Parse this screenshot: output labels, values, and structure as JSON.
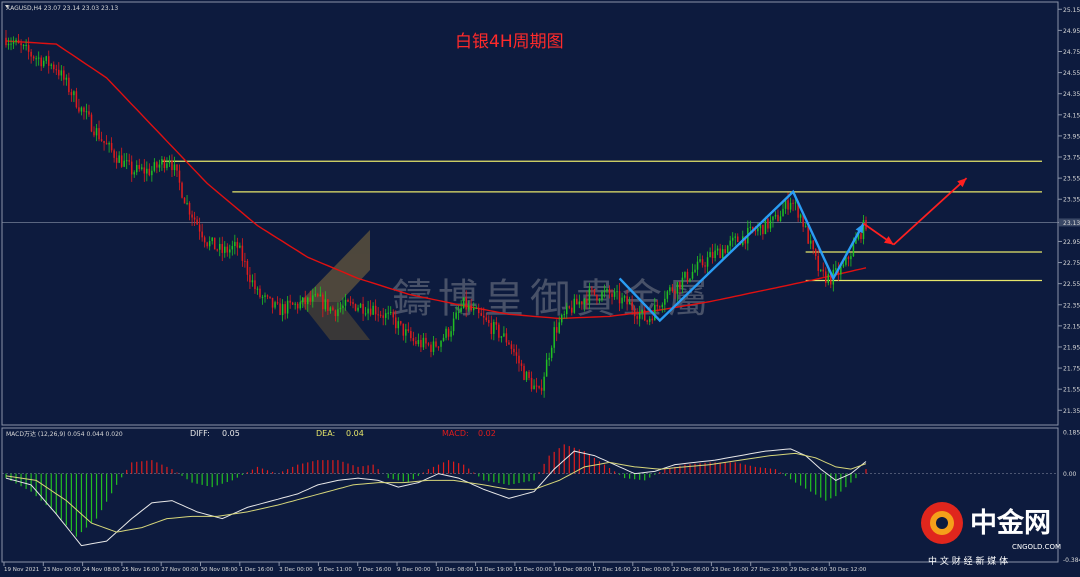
{
  "header": {
    "symbol_info": "XAGUSD,H4  23.07 23.14 23.03 23.13"
  },
  "title": "白银4H周期图",
  "watermark": {
    "text": "鑄博皇御貴金屬"
  },
  "logo": {
    "name": "中金网",
    "domain": "CNGOLD.COM",
    "tagline": "中 文 财 经 新 媒 体"
  },
  "colors": {
    "background": "#0d1b3e",
    "bull": "#22c022",
    "bear": "#e01c1c",
    "ma": "#e01010",
    "levels": "#e6e66a",
    "pattern": "#2a9df4",
    "forecast": "#ff2020",
    "diff": "#e8e8e8",
    "dea": "#d6d67a"
  },
  "chart_data": [
    {
      "type": "candlestick",
      "title": "白银4H周期图",
      "ylim": [
        21.22,
        25.2
      ],
      "y_ticks": [
        "25.15",
        "24.95",
        "24.75",
        "24.55",
        "24.35",
        "24.15",
        "23.95",
        "23.75",
        "23.55",
        "23.35",
        "23.13",
        "22.95",
        "22.75",
        "22.55",
        "22.35",
        "22.15",
        "21.95",
        "21.75",
        "21.55",
        "21.35"
      ],
      "current_price": "23.13",
      "x_labels": [
        "19 Nov 2021",
        "23 Nov 00:00",
        "24 Nov 08:00",
        "25 Nov 16:00",
        "27 Nov 00:00",
        "30 Nov 08:00",
        "1 Dec 16:00",
        "3 Dec 00:00",
        "6 Dec 11:00",
        "7 Dec 16:00",
        "9 Dec 00:00",
        "10 Dec 08:00",
        "13 Dec 19:00",
        "15 Dec 00:00",
        "16 Dec 08:00",
        "17 Dec 16:00",
        "21 Dec 00:00",
        "22 Dec 08:00",
        "23 Dec 16:00",
        "27 Dec 23:00",
        "29 Dec 04:00",
        "30 Dec 12:00"
      ],
      "price_path": [
        [
          0,
          24.88
        ],
        [
          10,
          24.72
        ],
        [
          20,
          24.6
        ],
        [
          30,
          24.2
        ],
        [
          40,
          23.85
        ],
        [
          50,
          23.62
        ],
        [
          58,
          23.62
        ],
        [
          65,
          23.75
        ],
        [
          72,
          23.3
        ],
        [
          80,
          22.95
        ],
        [
          86,
          22.85
        ],
        [
          92,
          22.9
        ],
        [
          100,
          22.45
        ],
        [
          108,
          22.3
        ],
        [
          116,
          22.35
        ],
        [
          124,
          22.4
        ],
        [
          130,
          22.3
        ],
        [
          138,
          22.35
        ],
        [
          146,
          22.32
        ],
        [
          154,
          22.2
        ],
        [
          162,
          22.0
        ],
        [
          170,
          21.95
        ],
        [
          176,
          22.1
        ],
        [
          182,
          22.35
        ],
        [
          190,
          22.2
        ],
        [
          200,
          22.0
        ],
        [
          206,
          21.7
        ],
        [
          212,
          21.5
        ],
        [
          218,
          22.1
        ],
        [
          224,
          22.3
        ],
        [
          232,
          22.45
        ],
        [
          240,
          22.45
        ],
        [
          248,
          22.35
        ],
        [
          255,
          22.2
        ],
        [
          262,
          22.45
        ],
        [
          270,
          22.6
        ],
        [
          280,
          22.8
        ],
        [
          290,
          22.95
        ],
        [
          298,
          23.05
        ],
        [
          306,
          23.15
        ],
        [
          312,
          23.35
        ],
        [
          316,
          23.2
        ],
        [
          320,
          22.9
        ],
        [
          324,
          22.62
        ],
        [
          328,
          22.6
        ],
        [
          333,
          22.7
        ],
        [
          338,
          22.95
        ],
        [
          342,
          23.13
        ]
      ],
      "ma_series": [
        [
          0,
          24.85
        ],
        [
          20,
          24.82
        ],
        [
          40,
          24.5
        ],
        [
          60,
          24.0
        ],
        [
          80,
          23.5
        ],
        [
          100,
          23.1
        ],
        [
          120,
          22.8
        ],
        [
          140,
          22.6
        ],
        [
          160,
          22.45
        ],
        [
          180,
          22.35
        ],
        [
          200,
          22.26
        ],
        [
          220,
          22.22
        ],
        [
          240,
          22.24
        ],
        [
          260,
          22.3
        ],
        [
          280,
          22.38
        ],
        [
          300,
          22.48
        ],
        [
          320,
          22.58
        ],
        [
          342,
          22.7
        ]
      ],
      "levels": [
        23.71,
        23.42,
        22.85,
        22.58
      ],
      "pattern_path": [
        [
          244,
          22.6
        ],
        [
          260,
          22.2
        ],
        [
          313,
          23.42
        ],
        [
          329,
          22.6
        ],
        [
          341,
          23.12
        ]
      ],
      "forecast_path": [
        [
          341,
          23.12
        ],
        [
          353,
          22.92
        ],
        [
          382,
          23.55
        ]
      ],
      "current_price_value": 23.13
    },
    {
      "type": "macd",
      "label": "MACD万达 (12,26,9) 0.054 0.044 0.020",
      "diff_label": "DIFF:",
      "diff_value": "0.05",
      "dea_label": "DEA:",
      "dea_value": "0.04",
      "macd_label": "MACD:",
      "macd_value": "0.02",
      "ylim": [
        -0.384,
        0.185
      ],
      "y_ticks": [
        "0.185",
        "0.00",
        "-0.384"
      ],
      "hist_seed": [
        [
          0,
          -0.02
        ],
        [
          10,
          -0.08
        ],
        [
          20,
          -0.18
        ],
        [
          28,
          -0.28
        ],
        [
          36,
          -0.2
        ],
        [
          44,
          -0.05
        ],
        [
          50,
          0.05
        ],
        [
          58,
          0.06
        ],
        [
          66,
          0.02
        ],
        [
          74,
          -0.04
        ],
        [
          82,
          -0.06
        ],
        [
          90,
          -0.03
        ],
        [
          100,
          0.03
        ],
        [
          108,
          0.0
        ],
        [
          116,
          0.04
        ],
        [
          124,
          0.06
        ],
        [
          132,
          0.06
        ],
        [
          140,
          0.03
        ],
        [
          146,
          0.04
        ],
        [
          152,
          -0.02
        ],
        [
          160,
          -0.04
        ],
        [
          168,
          0.02
        ],
        [
          176,
          0.06
        ],
        [
          182,
          0.04
        ],
        [
          190,
          -0.03
        ],
        [
          200,
          -0.05
        ],
        [
          210,
          -0.03
        ],
        [
          216,
          0.08
        ],
        [
          222,
          0.13
        ],
        [
          230,
          0.1
        ],
        [
          238,
          0.04
        ],
        [
          246,
          -0.02
        ],
        [
          254,
          -0.03
        ],
        [
          262,
          0.02
        ],
        [
          270,
          0.04
        ],
        [
          280,
          0.05
        ],
        [
          290,
          0.05
        ],
        [
          298,
          0.03
        ],
        [
          306,
          0.02
        ],
        [
          314,
          -0.04
        ],
        [
          320,
          -0.08
        ],
        [
          326,
          -0.12
        ],
        [
          330,
          -0.1
        ],
        [
          336,
          -0.04
        ],
        [
          342,
          0.02
        ]
      ],
      "diff_seed": [
        [
          0,
          -0.02
        ],
        [
          10,
          -0.05
        ],
        [
          20,
          -0.18
        ],
        [
          30,
          -0.32
        ],
        [
          40,
          -0.3
        ],
        [
          50,
          -0.2
        ],
        [
          58,
          -0.13
        ],
        [
          66,
          -0.12
        ],
        [
          76,
          -0.17
        ],
        [
          86,
          -0.2
        ],
        [
          96,
          -0.15
        ],
        [
          106,
          -0.12
        ],
        [
          116,
          -0.09
        ],
        [
          124,
          -0.05
        ],
        [
          132,
          -0.03
        ],
        [
          140,
          -0.02
        ],
        [
          148,
          -0.03
        ],
        [
          156,
          -0.06
        ],
        [
          164,
          -0.04
        ],
        [
          172,
          0.0
        ],
        [
          180,
          -0.02
        ],
        [
          190,
          -0.07
        ],
        [
          200,
          -0.11
        ],
        [
          210,
          -0.08
        ],
        [
          218,
          0.02
        ],
        [
          226,
          0.1
        ],
        [
          234,
          0.08
        ],
        [
          242,
          0.04
        ],
        [
          250,
          0.0
        ],
        [
          258,
          0.01
        ],
        [
          266,
          0.04
        ],
        [
          274,
          0.05
        ],
        [
          282,
          0.06
        ],
        [
          292,
          0.08
        ],
        [
          302,
          0.1
        ],
        [
          312,
          0.11
        ],
        [
          318,
          0.08
        ],
        [
          324,
          0.02
        ],
        [
          330,
          -0.03
        ],
        [
          336,
          0.0
        ],
        [
          342,
          0.054
        ]
      ],
      "dea_seed": [
        [
          0,
          -0.01
        ],
        [
          12,
          -0.03
        ],
        [
          24,
          -0.12
        ],
        [
          34,
          -0.22
        ],
        [
          44,
          -0.26
        ],
        [
          54,
          -0.24
        ],
        [
          64,
          -0.2
        ],
        [
          74,
          -0.19
        ],
        [
          84,
          -0.19
        ],
        [
          96,
          -0.17
        ],
        [
          108,
          -0.14
        ],
        [
          118,
          -0.11
        ],
        [
          128,
          -0.08
        ],
        [
          138,
          -0.05
        ],
        [
          148,
          -0.04
        ],
        [
          158,
          -0.04
        ],
        [
          168,
          -0.03
        ],
        [
          178,
          -0.03
        ],
        [
          190,
          -0.05
        ],
        [
          200,
          -0.07
        ],
        [
          210,
          -0.07
        ],
        [
          220,
          -0.03
        ],
        [
          230,
          0.03
        ],
        [
          240,
          0.05
        ],
        [
          250,
          0.03
        ],
        [
          260,
          0.02
        ],
        [
          270,
          0.03
        ],
        [
          280,
          0.04
        ],
        [
          292,
          0.06
        ],
        [
          304,
          0.08
        ],
        [
          314,
          0.09
        ],
        [
          322,
          0.07
        ],
        [
          330,
          0.03
        ],
        [
          336,
          0.02
        ],
        [
          342,
          0.044
        ]
      ]
    }
  ]
}
